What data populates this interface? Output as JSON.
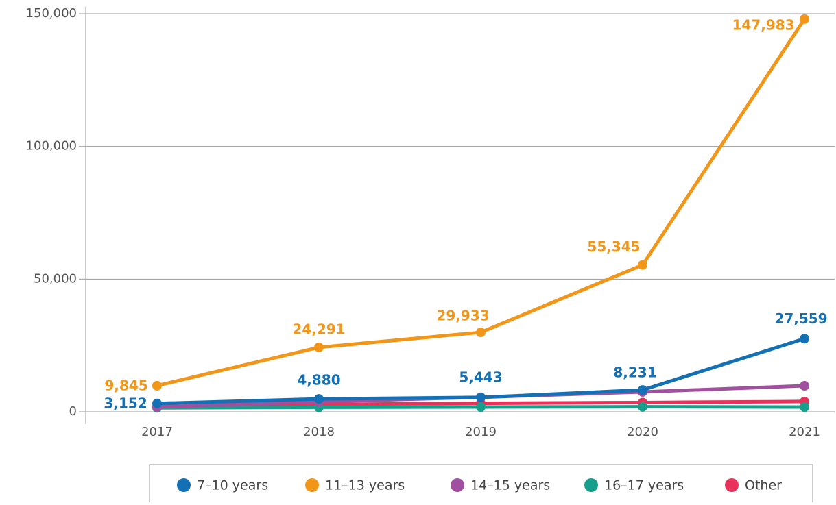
{
  "chart_data": {
    "type": "line",
    "categories": [
      "2017",
      "2018",
      "2019",
      "2020",
      "2021"
    ],
    "series": [
      {
        "name": "7–10 years",
        "color": "#1470b5",
        "values": [
          3152,
          4880,
          5443,
          8231,
          27559
        ],
        "value_labels": [
          "3,152",
          "4,880",
          "5,443",
          "8,231",
          "27,559"
        ]
      },
      {
        "name": "11–13 years",
        "color": "#f29619",
        "values": [
          9845,
          24291,
          29933,
          55345,
          147983
        ],
        "value_labels": [
          "9,845",
          "24,291",
          "29,933",
          "55,345",
          "147,983"
        ]
      },
      {
        "name": "14–15 years",
        "color": "#a1509f",
        "values": [
          1800,
          3800,
          5500,
          7500,
          9800
        ]
      },
      {
        "name": "16–17 years",
        "color": "#169f8a",
        "values": [
          1500,
          1700,
          1800,
          1900,
          1800
        ]
      },
      {
        "name": "Other",
        "color": "#e8325b",
        "values": [
          2000,
          2800,
          3200,
          3500,
          3900
        ]
      }
    ],
    "ylim": [
      0,
      150000
    ],
    "yticks": [
      0,
      {
        "value": 50000,
        "label": "50,000"
      },
      {
        "value": 100000,
        "label": "100,000"
      },
      {
        "value": 150000,
        "label": "150,000"
      }
    ],
    "grid": true
  }
}
